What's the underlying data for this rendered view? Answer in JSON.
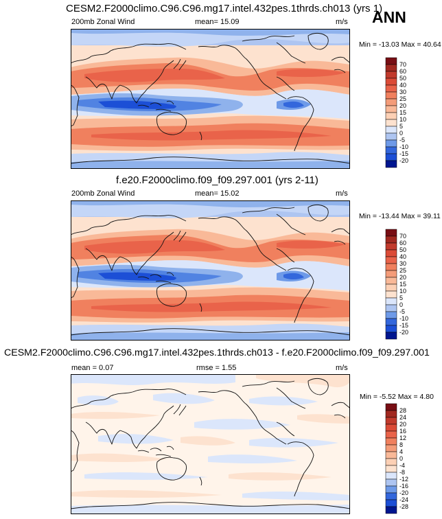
{
  "season": "ANN",
  "units": "m/s",
  "panels": [
    {
      "title": "CESM2.F2000climo.C96.C96.mg17.intel.432pes.1thrds.ch013 (yrs 1)",
      "variable": "200mb Zonal Wind",
      "stat_label": "mean",
      "stat_value": "15.09",
      "stat_text": "mean=  15.09",
      "units": "m/s",
      "min": "-13.03",
      "max": "40.64",
      "minmax_text": "Min = -13.03 Max =  40.64",
      "colorbar_levels": [
        "70",
        "60",
        "50",
        "40",
        "30",
        "25",
        "20",
        "15",
        "10",
        "5",
        "0",
        "-5",
        "-10",
        "-15",
        "-20"
      ]
    },
    {
      "title": "f.e20.F2000climo.f09_f09.297.001 (yrs 2-11)",
      "variable": "200mb Zonal Wind",
      "stat_label": "mean",
      "stat_value": "15.02",
      "stat_text": "mean=  15.02",
      "units": "m/s",
      "min": "-13.44",
      "max": "39.11",
      "minmax_text": "Min = -13.44 Max =  39.11",
      "colorbar_levels": [
        "70",
        "60",
        "50",
        "40",
        "30",
        "25",
        "20",
        "15",
        "10",
        "5",
        "0",
        "-5",
        "-10",
        "-15",
        "-20"
      ]
    },
    {
      "title": "CESM2.F2000climo.C96.C96.mg17.intel.432pes.1thrds.ch013 - f.e20.F2000climo.f09_f09.297.001",
      "mean_text": "mean =   0.07",
      "mean_value": "0.07",
      "rmse_text": "rmse =   1.55",
      "rmse_value": "1.55",
      "units": "m/s",
      "min": "-5.52",
      "max": "4.80",
      "minmax_text": "Min =  -5.52 Max =   4.80",
      "colorbar_levels": [
        "28",
        "24",
        "20",
        "16",
        "12",
        "8",
        "4",
        "0",
        "-4",
        "-8",
        "-12",
        "-16",
        "-20",
        "-24",
        "-28"
      ]
    }
  ],
  "chart_data": [
    {
      "type": "heatmap",
      "title": "CESM2.F2000climo.C96.C96.mg17.intel.432pes.1thrds.ch013 (yrs 1)",
      "variable": "200mb Zonal Wind",
      "units": "m/s",
      "mean": 15.09,
      "min": -13.03,
      "max": 40.64,
      "x": [
        0,
        60,
        120,
        180,
        240,
        300,
        360
      ],
      "y": [
        -90,
        -60,
        -30,
        0,
        30,
        60,
        90
      ],
      "colorbar_levels": [
        -20,
        -15,
        -10,
        -5,
        0,
        5,
        10,
        15,
        20,
        25,
        30,
        40,
        50,
        60,
        70
      ]
    },
    {
      "type": "heatmap",
      "title": "f.e20.F2000climo.f09_f09.297.001 (yrs 2-11)",
      "variable": "200mb Zonal Wind",
      "units": "m/s",
      "mean": 15.02,
      "min": -13.44,
      "max": 39.11,
      "x": [
        0,
        60,
        120,
        180,
        240,
        300,
        360
      ],
      "y": [
        -90,
        -60,
        -30,
        0,
        30,
        60,
        90
      ],
      "colorbar_levels": [
        -20,
        -15,
        -10,
        -5,
        0,
        5,
        10,
        15,
        20,
        25,
        30,
        40,
        50,
        60,
        70
      ]
    },
    {
      "type": "heatmap",
      "title": "CESM2.F2000climo.C96.C96.mg17.intel.432pes.1thrds.ch013 - f.e20.F2000climo.f09_f09.297.001",
      "units": "m/s",
      "mean": 0.07,
      "rmse": 1.55,
      "min": -5.52,
      "max": 4.8,
      "x": [
        0,
        60,
        120,
        180,
        240,
        300,
        360
      ],
      "y": [
        -90,
        -60,
        -30,
        0,
        30,
        60,
        90
      ],
      "colorbar_levels": [
        -28,
        -24,
        -20,
        -16,
        -12,
        -8,
        -4,
        0,
        4,
        8,
        12,
        16,
        20,
        24,
        28
      ]
    }
  ],
  "colors": {
    "palette": [
      "#fff4ea",
      "#fde2cf",
      "#fcd0b5",
      "#f9b998",
      "#f49c79",
      "#f0805e",
      "#e9634a",
      "#db4b37",
      "#c13a2c",
      "#a12820",
      "#780e14"
    ],
    "cool": [
      "#dbe6fb",
      "#c4d6f7",
      "#aec5f1",
      "#8fb2ec",
      "#6e9ae8",
      "#5183e2",
      "#3367dc",
      "#1c4fd6",
      "#0a37b7",
      "#00168f"
    ],
    "coast": "#111111"
  }
}
